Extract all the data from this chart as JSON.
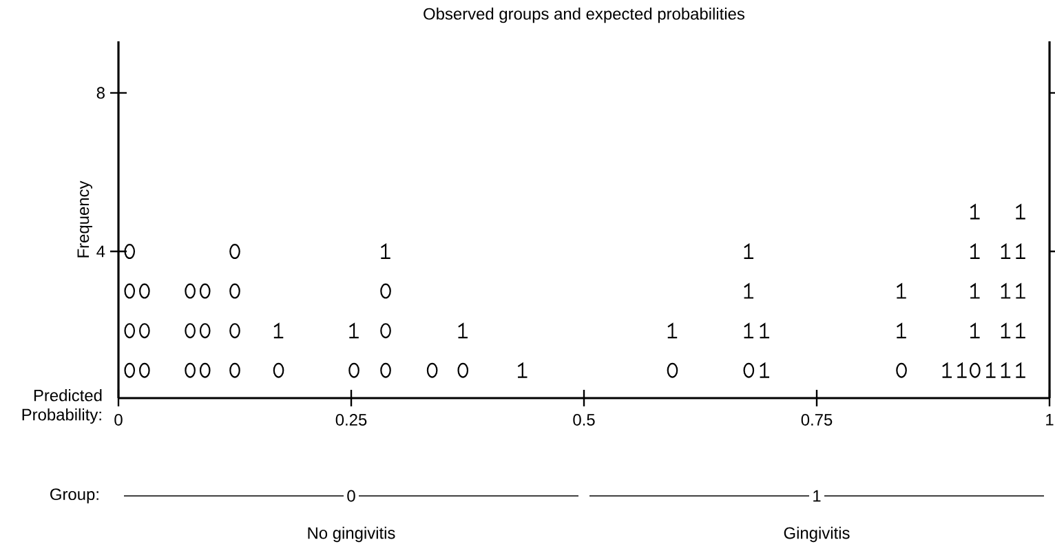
{
  "chart_data": {
    "type": "scatter",
    "title": "Observed groups and expected probabilities",
    "xlabel": "Predicted Probability:",
    "ylabel": "Frequency",
    "xlim": [
      0,
      1
    ],
    "xticks": [
      0,
      0.25,
      0.5,
      0.75,
      1
    ],
    "ylim": [
      0.3,
      9.3
    ],
    "yticks": [
      4,
      8
    ],
    "series": [
      {
        "color": "#000000",
        "x": [
          0.012,
          0.012,
          0.012,
          0.012,
          0.028,
          0.028,
          0.028,
          0.077,
          0.077,
          0.077,
          0.093,
          0.093,
          0.093,
          0.125,
          0.125,
          0.125,
          0.125,
          0.172,
          0.253,
          0.287,
          0.287,
          0.287,
          0.337,
          0.37,
          0.595,
          0.677,
          0.841,
          0.92
        ],
        "values": [
          1,
          2,
          3,
          4,
          1,
          2,
          3,
          1,
          2,
          3,
          1,
          2,
          3,
          1,
          2,
          3,
          4,
          1,
          1,
          1,
          2,
          3,
          1,
          1,
          1,
          1,
          1,
          1
        ]
      },
      {
        "color": "#000000",
        "x": [
          0.172,
          0.253,
          0.287,
          0.37,
          0.434,
          0.595,
          0.677,
          0.677,
          0.677,
          0.694,
          0.694,
          0.841,
          0.841,
          0.89,
          0.906,
          0.92,
          0.92,
          0.92,
          0.92,
          0.937,
          0.953,
          0.953,
          0.953,
          0.953,
          0.969,
          0.969,
          0.969,
          0.969,
          0.969
        ],
        "values": [
          2,
          2,
          4,
          2,
          1,
          2,
          2,
          3,
          4,
          1,
          2,
          2,
          3,
          1,
          1,
          2,
          3,
          4,
          5,
          1,
          1,
          2,
          3,
          4,
          1,
          2,
          3,
          4,
          5
        ]
      }
    ],
    "annotations": [
      "Group:",
      "0",
      "1",
      "No gingivitis",
      "Gingivitis"
    ]
  }
}
